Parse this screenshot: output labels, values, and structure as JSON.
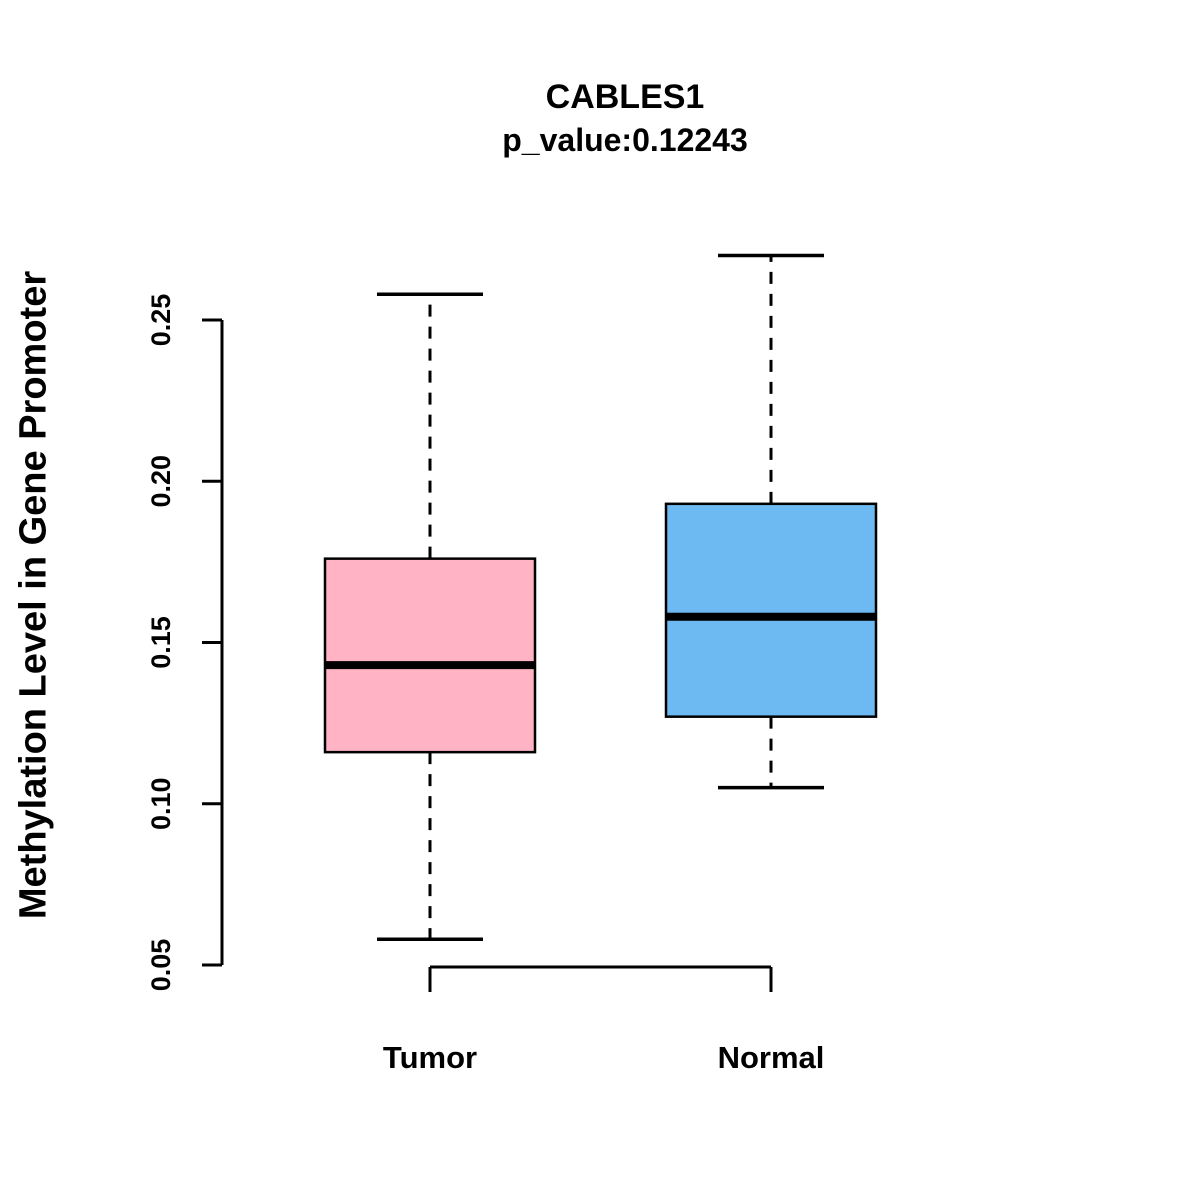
{
  "title": "CABLES1",
  "subtitle": "p_value:0.12243",
  "ylabel": "Methylation Level in Gene Promoter",
  "categories": {
    "0": "Tumor",
    "1": "Normal"
  },
  "colors": {
    "tumor_fill": "#FFB3C4",
    "normal_fill": "#6DB9F2",
    "line": "#000000",
    "background": "#FFFFFF"
  },
  "chart_data": {
    "type": "boxplot",
    "title": "CABLES1",
    "subtitle": "p_value:0.12243",
    "ylabel": "Methylation Level in Gene Promoter",
    "xlabel": "",
    "categories": [
      "Tumor",
      "Normal"
    ],
    "series": [
      {
        "name": "Tumor",
        "min": 0.058,
        "q1": 0.116,
        "median": 0.143,
        "q3": 0.176,
        "max": 0.258,
        "color": "#FFB3C4"
      },
      {
        "name": "Normal",
        "min": 0.105,
        "q1": 0.127,
        "median": 0.158,
        "q3": 0.193,
        "max": 0.27,
        "color": "#6DB9F2"
      }
    ],
    "yticks": [
      0.05,
      0.1,
      0.15,
      0.2,
      0.25
    ],
    "ylim": [
      0.05,
      0.25
    ],
    "grid": false,
    "legend": "none"
  }
}
